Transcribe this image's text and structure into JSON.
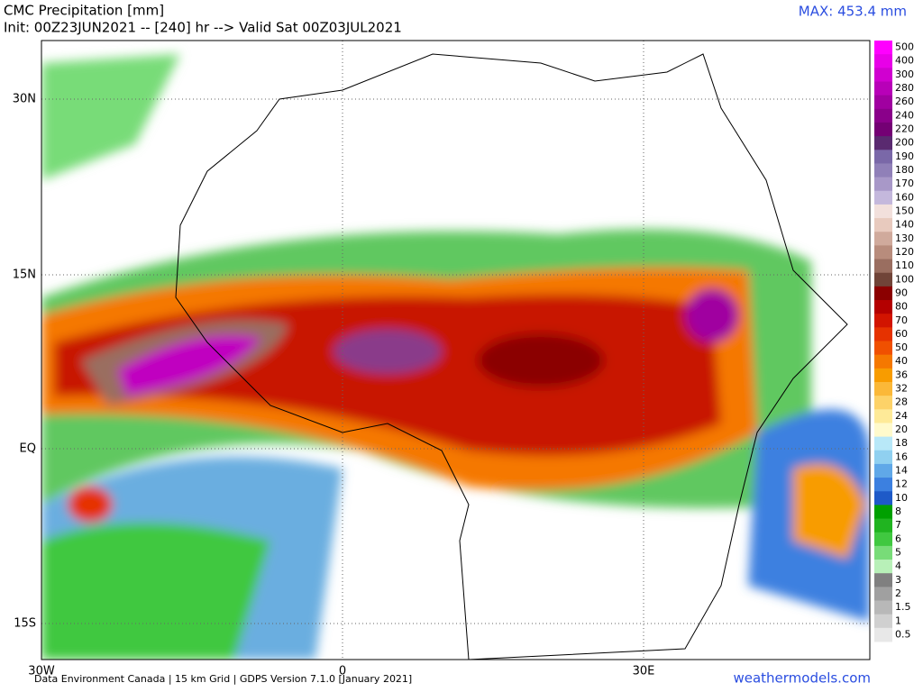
{
  "header": {
    "title": "CMC Precipitation [mm]",
    "subtitle": "Init: 00Z23JUN2021 -- [240] hr --> Valid Sat 00Z03JUL2021",
    "max_label": "MAX: 453.4 mm"
  },
  "map": {
    "lat_labels": [
      "30N",
      "15N",
      "EQ",
      "15S"
    ],
    "lon_labels": [
      "30W",
      "0",
      "30E"
    ]
  },
  "legend": [
    {
      "value": 500,
      "color": "#ff00ff"
    },
    {
      "value": 400,
      "color": "#e800e8"
    },
    {
      "value": 300,
      "color": "#d000d0"
    },
    {
      "value": 280,
      "color": "#b800b8"
    },
    {
      "value": 260,
      "color": "#a000a0"
    },
    {
      "value": 240,
      "color": "#8a008a"
    },
    {
      "value": 220,
      "color": "#740074"
    },
    {
      "value": 200,
      "color": "#5a2a70"
    },
    {
      "value": 190,
      "color": "#7a68a8"
    },
    {
      "value": 180,
      "color": "#9080b8"
    },
    {
      "value": 170,
      "color": "#a898c8"
    },
    {
      "value": 160,
      "color": "#c4b8dc"
    },
    {
      "value": 150,
      "color": "#f2e0dc"
    },
    {
      "value": 140,
      "color": "#e8cabe"
    },
    {
      "value": 130,
      "color": "#d0aa9c"
    },
    {
      "value": 120,
      "color": "#b88c7c"
    },
    {
      "value": 110,
      "color": "#9a6e60"
    },
    {
      "value": 100,
      "color": "#704438"
    },
    {
      "value": 90,
      "color": "#8b0000"
    },
    {
      "value": 80,
      "color": "#b40000"
    },
    {
      "value": 70,
      "color": "#d21400"
    },
    {
      "value": 60,
      "color": "#e63200"
    },
    {
      "value": 50,
      "color": "#f05000"
    },
    {
      "value": 40,
      "color": "#f57800"
    },
    {
      "value": 36,
      "color": "#f89c00"
    },
    {
      "value": 32,
      "color": "#fbb838"
    },
    {
      "value": 28,
      "color": "#fdd268"
    },
    {
      "value": 24,
      "color": "#feea98"
    },
    {
      "value": 20,
      "color": "#fffacc"
    },
    {
      "value": 18,
      "color": "#b8e8f8"
    },
    {
      "value": 16,
      "color": "#90d0f0"
    },
    {
      "value": 14,
      "color": "#60a8e8"
    },
    {
      "value": 12,
      "color": "#3c80e0"
    },
    {
      "value": 10,
      "color": "#1e5ac8"
    },
    {
      "value": 8,
      "color": "#00a000"
    },
    {
      "value": 7,
      "color": "#20b420"
    },
    {
      "value": 6,
      "color": "#40c840"
    },
    {
      "value": 5,
      "color": "#78dc78"
    },
    {
      "value": 4,
      "color": "#b8f0b8"
    },
    {
      "value": 3,
      "color": "#808080"
    },
    {
      "value": 2,
      "color": "#a0a0a0"
    },
    {
      "value": 1.5,
      "color": "#b8b8b8"
    },
    {
      "value": 1,
      "color": "#d0d0d0"
    },
    {
      "value": 0.5,
      "color": "#e8e8e8"
    }
  ],
  "footer": {
    "credits": "Data Environment Canada | 15 km Grid | GDPS Version 7.1.0 [January 2021]",
    "site": "weathermodels.com"
  }
}
